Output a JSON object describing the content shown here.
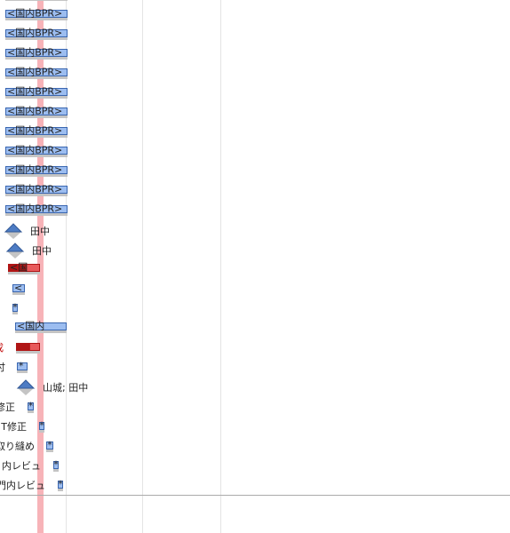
{
  "rows": [
    {
      "bar_text": "<国内BPR>"
    },
    {
      "bar_text": "<国内BPR>"
    },
    {
      "bar_text": "<国内BPR>"
    },
    {
      "bar_text": "<国内BPR>"
    },
    {
      "bar_text": "<国内BPR>"
    },
    {
      "bar_text": "<国内BPR>"
    },
    {
      "bar_text": "<国内BPR>"
    },
    {
      "bar_text": "<国内BPR>"
    },
    {
      "bar_text": "<国内BPR>"
    },
    {
      "bar_text": "<国内BPR>"
    },
    {
      "bar_text": "<国内BPR>"
    },
    {
      "bar_text": "<国内BPR>"
    },
    {
      "side_label": "田中"
    },
    {
      "side_label": "田中"
    },
    {
      "bar_text": "<国"
    },
    {
      "bar_text": "<"
    },
    {
      "bar_text": "*"
    },
    {
      "bar_text": "<国内"
    },
    {
      "left_label": "成"
    },
    {
      "left_label": "付",
      "bar_text": "*"
    },
    {
      "side_label": "山城; 田中"
    },
    {
      "left_label": "修正",
      "bar_text": "*"
    },
    {
      "left_label": "T修正",
      "bar_text": "*"
    },
    {
      "left_label": "取り縫め",
      "bar_text": "*"
    },
    {
      "left_label": "内レビュ",
      "bar_text": "*"
    },
    {
      "left_label": "門内レビュ",
      "bar_text": "*"
    }
  ]
}
